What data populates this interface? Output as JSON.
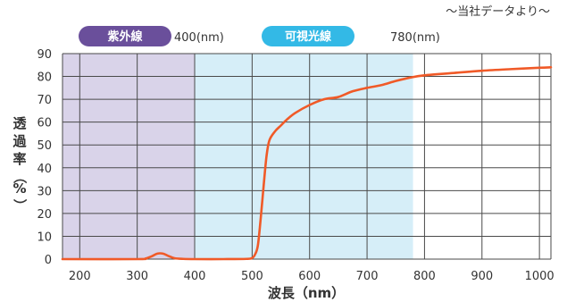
{
  "chart_data": {
    "type": "line",
    "source_note": "〜当社データより〜",
    "xlabel": "波長（nm）",
    "ylabel_chars": [
      "透",
      "過",
      "率",
      "（",
      "%",
      "）"
    ],
    "xlim": [
      170,
      1020
    ],
    "ylim": [
      0,
      90
    ],
    "x_ticks": [
      200,
      300,
      400,
      500,
      600,
      700,
      800,
      900,
      1000
    ],
    "y_ticks": [
      0,
      10,
      20,
      30,
      40,
      50,
      60,
      70,
      80,
      90
    ],
    "grid": true,
    "colors": {
      "uv_band": "#d9d3e9",
      "visible_band": "#d6eef8",
      "uv_pill": "#6a4f9b",
      "visible_pill": "#33b9e6",
      "line": "#f05a28",
      "grid": "#4a4a4a"
    },
    "bands": [
      {
        "name": "紫外線",
        "x_start": 170,
        "x_end": 400,
        "boundary_label": "400(nm)"
      },
      {
        "name": "可視光線",
        "x_start": 400,
        "x_end": 780,
        "boundary_label": "780(nm)"
      }
    ],
    "series": [
      {
        "x": [
          170,
          300,
          315,
          325,
          335,
          345,
          355,
          365,
          380,
          400,
          450,
          490,
          500,
          505,
          510,
          515,
          520,
          525,
          530,
          540,
          550,
          560,
          575,
          600,
          625,
          650,
          675,
          700,
          725,
          750,
          775,
          800,
          850,
          900,
          950,
          1000,
          1020
        ],
        "values": [
          0,
          0,
          0.3,
          1.2,
          2.4,
          2.4,
          1.3,
          0.4,
          0.1,
          0,
          0,
          0.1,
          0.5,
          2,
          6,
          18,
          32,
          45,
          52,
          56,
          58.5,
          61,
          64,
          67.5,
          70,
          71,
          73.5,
          75,
          76.2,
          78,
          79.5,
          80.5,
          81.5,
          82.5,
          83.2,
          83.8,
          84
        ]
      }
    ]
  }
}
